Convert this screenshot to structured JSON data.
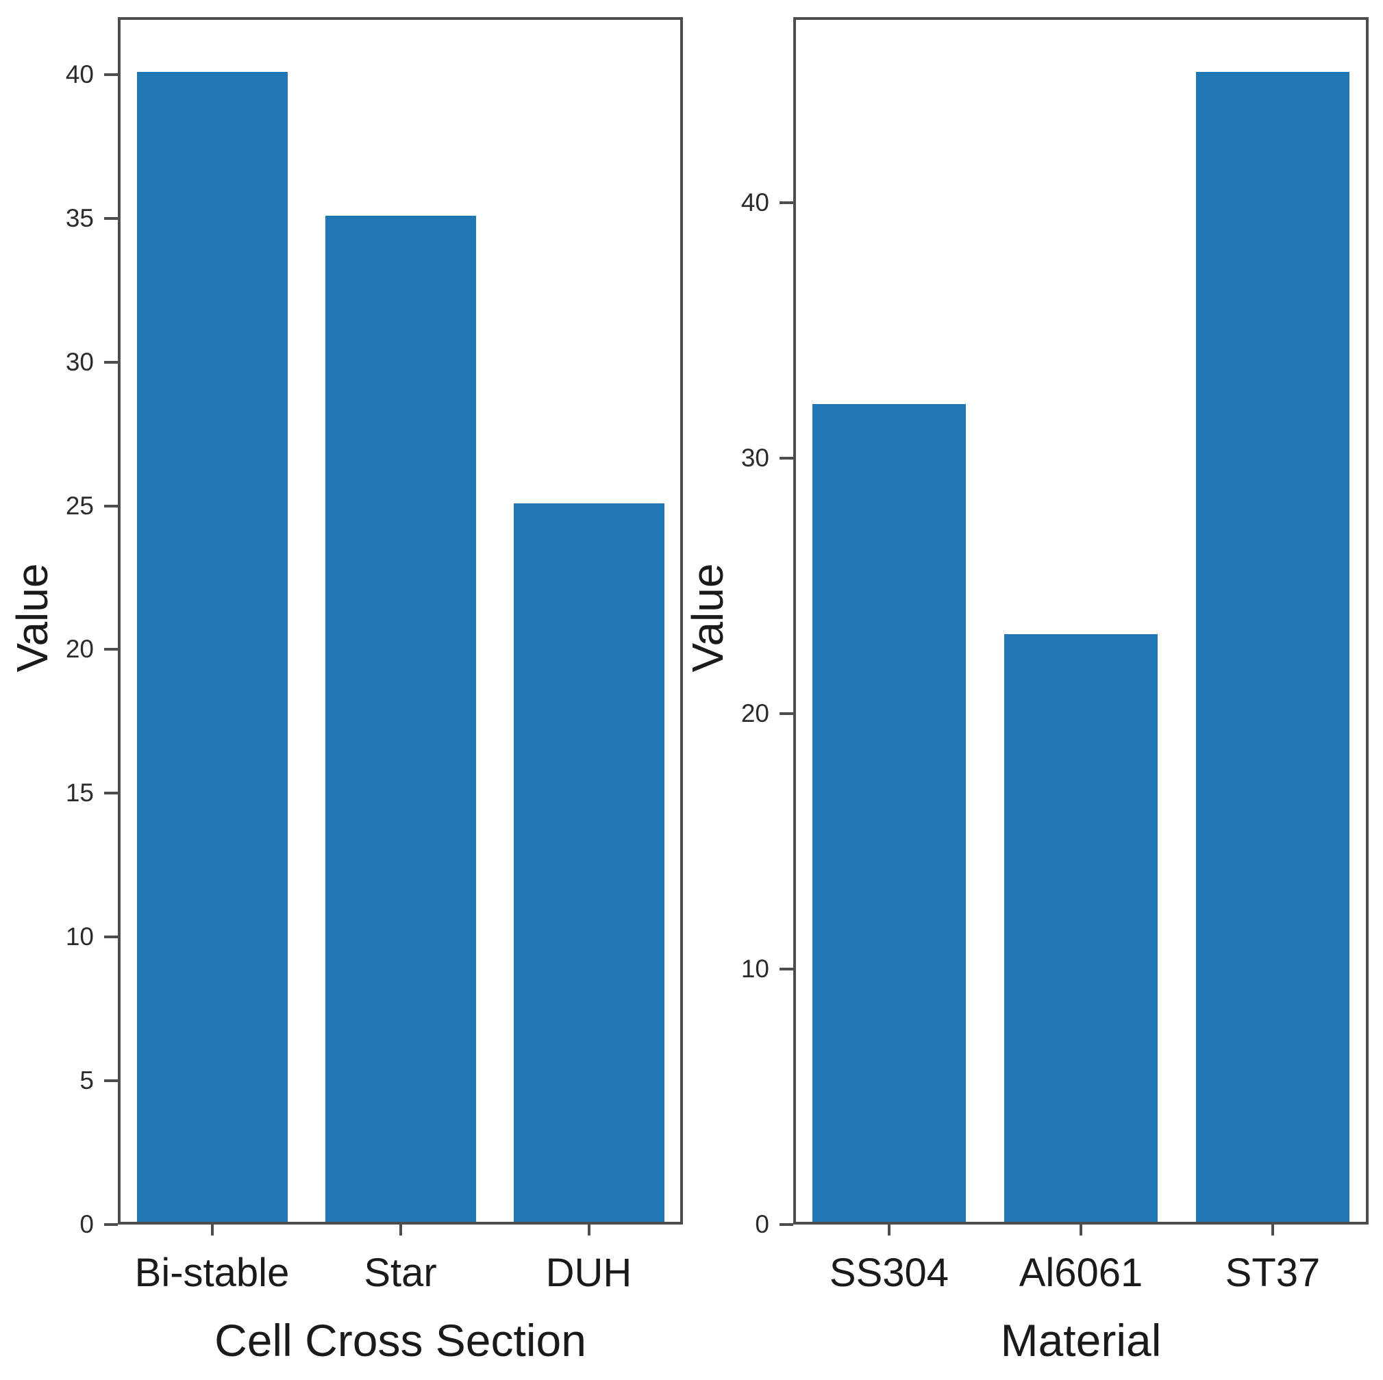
{
  "figure": {
    "background": "#ffffff",
    "num_subplots": 2
  },
  "colors": {
    "bar": "#2077b4",
    "spine": "#4d4d4d",
    "tick_text": "#2b2b2b",
    "label_text": "#1a1a1a"
  },
  "chart_data": [
    {
      "type": "bar",
      "title": "",
      "categories": [
        "Bi-stable",
        "Star",
        "DUH"
      ],
      "values": [
        40,
        35,
        25
      ],
      "xlabel": "Cell Cross Section",
      "ylabel": "Value",
      "ylim": [
        0,
        42
      ],
      "yticks": [
        0,
        5,
        10,
        15,
        20,
        25,
        30,
        35,
        40
      ],
      "grid": false,
      "legend": null
    },
    {
      "type": "bar",
      "title": "",
      "categories": [
        "SS304",
        "Al6061",
        "ST37"
      ],
      "values": [
        32,
        23,
        45
      ],
      "xlabel": "Material",
      "ylabel": "Value",
      "ylim": [
        0,
        47.25
      ],
      "yticks": [
        0,
        10,
        20,
        30,
        40
      ],
      "grid": false,
      "legend": null
    }
  ]
}
